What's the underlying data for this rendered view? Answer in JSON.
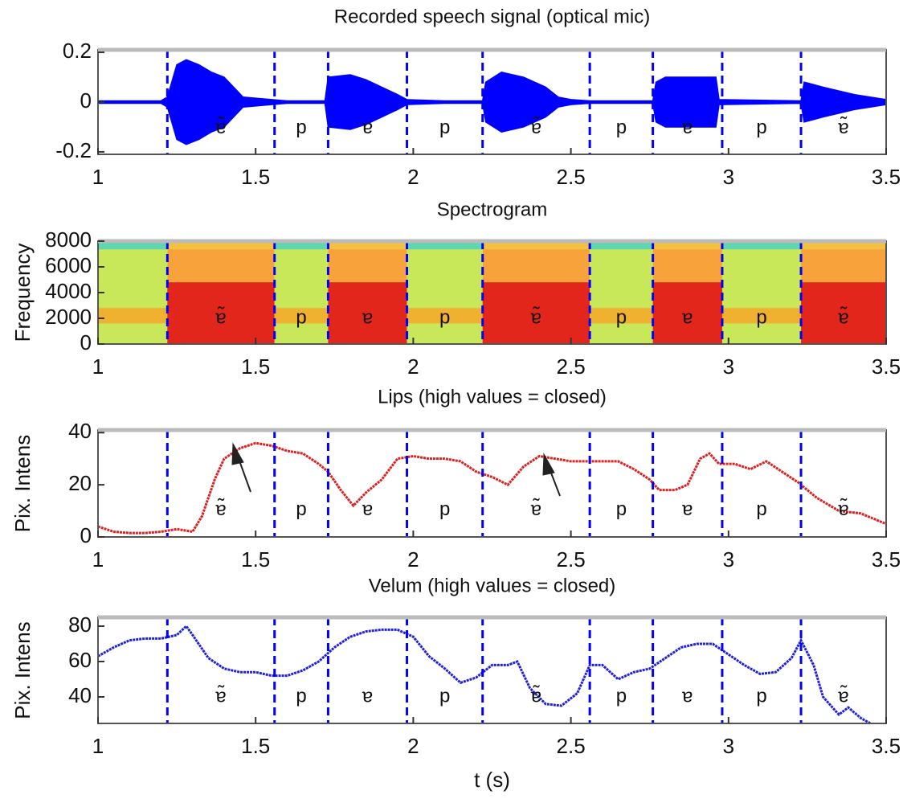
{
  "segments": {
    "boundaries": [
      1.22,
      1.56,
      1.73,
      1.98,
      2.22,
      2.56,
      2.76,
      2.98,
      3.23
    ],
    "labels": [
      "ɐ̃",
      "p",
      "ɐ",
      "p",
      "ɐ̃",
      "p",
      "ɐ",
      "p",
      "ɐ̃"
    ]
  },
  "chart_data": [
    {
      "type": "waveform",
      "title": "Recorded speech signal (optical mic)",
      "color": "#0000ff",
      "xlim": [
        1,
        3.5
      ],
      "xticks": [
        1,
        1.5,
        2,
        2.5,
        3,
        3.5
      ],
      "ylim": [
        -0.21,
        0.21
      ],
      "yticks": [
        -0.2,
        0,
        0.2
      ],
      "x": [
        1.0,
        1.2,
        1.22,
        1.25,
        1.28,
        1.32,
        1.36,
        1.4,
        1.43,
        1.46,
        1.55,
        1.6,
        1.72,
        1.73,
        1.8,
        1.85,
        1.9,
        1.95,
        1.98,
        2.1,
        2.22,
        2.23,
        2.28,
        2.35,
        2.42,
        2.46,
        2.5,
        2.56,
        2.76,
        2.77,
        2.8,
        2.9,
        2.96,
        2.97,
        3.23,
        3.24,
        3.3,
        3.4,
        3.5
      ],
      "values": [
        0.005,
        0.005,
        0.02,
        0.15,
        0.17,
        0.15,
        0.12,
        0.1,
        0.06,
        0.02,
        0.01,
        0.005,
        0.005,
        0.1,
        0.11,
        0.09,
        0.06,
        0.03,
        0.01,
        0.005,
        0.005,
        0.08,
        0.12,
        0.1,
        0.06,
        0.02,
        0.01,
        0.005,
        0.005,
        0.08,
        0.1,
        0.1,
        0.1,
        0.01,
        0.005,
        0.08,
        0.06,
        0.03,
        0.01
      ]
    },
    {
      "type": "spectrogram",
      "title": "Spectrogram",
      "ylabel": "Frequency",
      "xlim": [
        1,
        3.5
      ],
      "xticks": [
        1,
        1.5,
        2,
        2.5,
        3,
        3.5
      ],
      "ylim": [
        0,
        8000
      ],
      "yticks": [
        0,
        2000,
        4000,
        6000,
        8000
      ]
    },
    {
      "type": "line",
      "title": "Lips (high values = closed)",
      "ylabel": "Pix. Intens",
      "color": "#e02020",
      "xlim": [
        1,
        3.5
      ],
      "xticks": [
        1,
        1.5,
        2,
        2.5,
        3,
        3.5
      ],
      "ylim": [
        0,
        41
      ],
      "yticks": [
        0,
        20,
        40
      ],
      "x": [
        1.0,
        1.05,
        1.1,
        1.15,
        1.2,
        1.25,
        1.3,
        1.33,
        1.37,
        1.4,
        1.45,
        1.5,
        1.55,
        1.6,
        1.65,
        1.7,
        1.73,
        1.77,
        1.81,
        1.85,
        1.9,
        1.95,
        2.0,
        2.05,
        2.1,
        2.15,
        2.2,
        2.25,
        2.3,
        2.35,
        2.4,
        2.45,
        2.5,
        2.55,
        2.6,
        2.65,
        2.7,
        2.75,
        2.78,
        2.83,
        2.87,
        2.91,
        2.94,
        2.97,
        3.02,
        3.07,
        3.12,
        3.17,
        3.22,
        3.28,
        3.35,
        3.42,
        3.5
      ],
      "values": [
        4,
        2,
        1.5,
        1.5,
        2,
        3,
        2,
        8,
        22,
        30,
        34,
        36,
        35,
        33,
        32,
        28,
        25,
        18,
        12,
        17,
        22,
        30,
        31,
        30,
        30,
        29,
        25,
        23,
        20,
        27,
        31,
        30,
        29,
        29,
        29,
        29,
        26,
        22,
        18,
        18,
        20,
        30,
        32,
        28,
        28,
        26,
        29,
        25,
        21,
        15,
        10,
        9,
        5
      ]
    },
    {
      "type": "line",
      "title": "Velum (high values = closed)",
      "ylabel": "Pix. Intens",
      "xlabel": "t (s)",
      "color": "#2020e0",
      "xlim": [
        1,
        3.5
      ],
      "xticks": [
        1,
        1.5,
        2,
        2.5,
        3,
        3.5
      ],
      "ylim": [
        25,
        85
      ],
      "yticks": [
        40,
        60,
        80
      ],
      "x": [
        1.0,
        1.05,
        1.1,
        1.15,
        1.2,
        1.25,
        1.28,
        1.3,
        1.35,
        1.4,
        1.45,
        1.5,
        1.55,
        1.6,
        1.65,
        1.7,
        1.75,
        1.8,
        1.85,
        1.9,
        1.95,
        2.0,
        2.05,
        2.1,
        2.15,
        2.2,
        2.25,
        2.3,
        2.33,
        2.37,
        2.42,
        2.47,
        2.52,
        2.56,
        2.6,
        2.65,
        2.7,
        2.75,
        2.8,
        2.85,
        2.9,
        2.95,
        3.0,
        3.05,
        3.1,
        3.15,
        3.2,
        3.23,
        3.27,
        3.3,
        3.35,
        3.38,
        3.42,
        3.45
      ],
      "values": [
        63,
        68,
        72,
        73,
        73,
        75,
        80,
        75,
        62,
        56,
        54,
        54,
        52,
        52,
        55,
        60,
        68,
        74,
        77,
        78,
        78,
        74,
        63,
        56,
        48,
        51,
        58,
        58,
        60,
        45,
        36,
        35,
        42,
        58,
        58,
        50,
        54,
        56,
        62,
        68,
        70,
        70,
        64,
        58,
        53,
        54,
        62,
        72,
        58,
        40,
        30,
        34,
        28,
        25
      ]
    }
  ]
}
